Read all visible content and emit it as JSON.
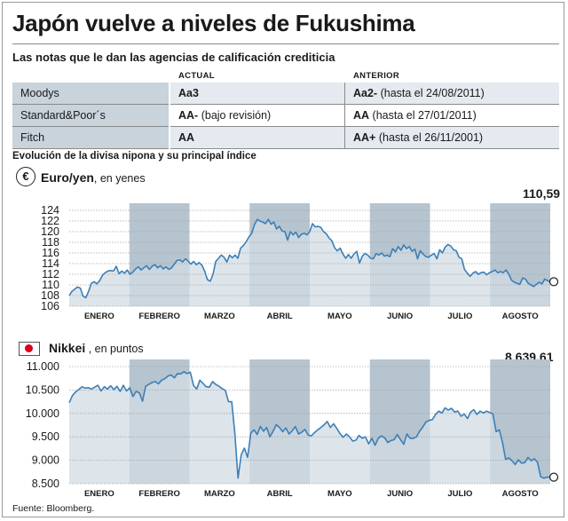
{
  "title": "Japón vuelve a niveles de Fukushima",
  "ratings": {
    "subtitle": "Las notas que le dan las agencias de calificación crediticia",
    "col_actual": "ACTUAL",
    "col_anterior": "ANTERIOR",
    "rows": [
      {
        "agency": "Moodys",
        "actual": "Aa3",
        "actual_note": "",
        "anterior": "Aa2-",
        "anterior_note": "(hasta el 24/08/2011)"
      },
      {
        "agency": "Standard&Poor´s",
        "actual": "AA-",
        "actual_note": "(bajo revisión)",
        "anterior": "AA",
        "anterior_note": "(hasta el 27/01/2011)"
      },
      {
        "agency": "Fitch",
        "actual": "AA",
        "actual_note": "",
        "anterior": "AA+",
        "anterior_note": "(hasta el 26/11/2001)"
      }
    ]
  },
  "section_title": "Evolución de la divisa nipona y su principal índice",
  "currency_icon": "euro-yen-icon",
  "flag_icon": "japan-flag-icon",
  "colors": {
    "line": "#3c7fb7",
    "fill": "#d2dce4",
    "band": "#b6c4cf",
    "grid": "#a8a8a8",
    "table_label_bg": "#c8d3dc",
    "flag_red": "#d9001b"
  },
  "source": "Fuente: Bloomberg.",
  "chart_data": [
    {
      "type": "area",
      "title": "Euro/yen",
      "unit_note": ", en yenes",
      "last_label": "110,59",
      "ylim": [
        106,
        124
      ],
      "yticks": [
        106,
        108,
        110,
        112,
        114,
        116,
        118,
        120,
        122,
        124
      ],
      "ytick_labels": [
        "106",
        "108",
        "110",
        "112",
        "114",
        "116",
        "118",
        "120",
        "122",
        "124"
      ],
      "months": [
        "ENERO",
        "FEBRERO",
        "MARZO",
        "ABRIL",
        "MAYO",
        "JUNIO",
        "JULIO",
        "AGOSTO"
      ],
      "series": [
        {
          "values": [
            108.0,
            108.8,
            109.2,
            109.6,
            109.4,
            107.9,
            107.6,
            108.8,
            110.3,
            110.6,
            110.2,
            110.8,
            111.8,
            112.3,
            112.6,
            112.7,
            112.6,
            113.5,
            112.1,
            112.6,
            112.2,
            112.8,
            112.0,
            112.4,
            113.0,
            113.4,
            112.8,
            113.2,
            113.6,
            112.9,
            113.5,
            113.8,
            113.2,
            113.6,
            113.0,
            113.4,
            112.9,
            113.2,
            113.9,
            114.6,
            114.7,
            114.3,
            114.9,
            114.5,
            113.9,
            114.4,
            113.8,
            114.2,
            113.7,
            112.6,
            111.0,
            110.7,
            112.0,
            114.4,
            115.0,
            115.6,
            115.2,
            114.3,
            115.6,
            115.1,
            115.6,
            115.0,
            116.9,
            117.4,
            118.1,
            119.0,
            119.7,
            121.3,
            122.3,
            122.0,
            121.8,
            121.5,
            122.3,
            121.4,
            121.8,
            120.5,
            121.0,
            120.1,
            120.0,
            118.4,
            120.0,
            119.4,
            119.9,
            118.9,
            119.5,
            119.7,
            119.4,
            120.0,
            121.5,
            120.9,
            121.0,
            120.8,
            120.0,
            119.6,
            118.8,
            118.3,
            117.0,
            116.4,
            116.9,
            115.8,
            115.0,
            115.7,
            115.0,
            115.8,
            116.3,
            114.1,
            115.4,
            115.9,
            115.6,
            115.0,
            114.9,
            115.9,
            115.6,
            116.0,
            115.4,
            115.6,
            115.3,
            116.8,
            116.2,
            117.2,
            116.5,
            117.5,
            116.8,
            117.2,
            116.3,
            116.7,
            114.9,
            116.4,
            115.8,
            115.3,
            115.2,
            115.6,
            115.9,
            114.9,
            116.6,
            116.0,
            117.1,
            117.6,
            117.3,
            116.6,
            116.4,
            115.2,
            114.9,
            112.9,
            112.2,
            111.6,
            112.2,
            112.5,
            112.0,
            112.3,
            112.4,
            111.9,
            112.3,
            112.5,
            112.8,
            112.3,
            112.5,
            112.3,
            112.8,
            112.0,
            110.9,
            110.5,
            110.3,
            110.1,
            111.3,
            111.1,
            110.3,
            110.0,
            109.7,
            110.1,
            110.5,
            110.2,
            111.1,
            110.8,
            110.6
          ]
        }
      ]
    },
    {
      "type": "area",
      "title": "Nikkei",
      "unit_note": " , en puntos",
      "last_label": "8.639,61",
      "ylim": [
        8500,
        11000
      ],
      "yticks": [
        8500,
        9000,
        9500,
        10000,
        10500,
        11000
      ],
      "ytick_labels": [
        "8.500",
        "9.000",
        "9.500",
        "10.000",
        "10.500",
        "11.000"
      ],
      "months": [
        "ENERO",
        "FEBRERO",
        "MARZO",
        "ABRIL",
        "MAYO",
        "JUNIO",
        "JULIO",
        "AGOSTO"
      ],
      "series": [
        {
          "values": [
            10230,
            10380,
            10460,
            10510,
            10570,
            10540,
            10550,
            10520,
            10560,
            10600,
            10480,
            10570,
            10520,
            10590,
            10510,
            10580,
            10470,
            10600,
            10480,
            10550,
            10360,
            10470,
            10440,
            10260,
            10580,
            10620,
            10660,
            10680,
            10630,
            10710,
            10740,
            10800,
            10820,
            10760,
            10850,
            10840,
            10890,
            10850,
            10880,
            10600,
            10520,
            10710,
            10640,
            10570,
            10560,
            10680,
            10620,
            10580,
            10530,
            10490,
            10250,
            10250,
            9580,
            8620,
            9120,
            9260,
            9060,
            9580,
            9650,
            9550,
            9720,
            9620,
            9700,
            9500,
            9620,
            9760,
            9700,
            9610,
            9690,
            9560,
            9630,
            9720,
            9560,
            9600,
            9660,
            9540,
            9520,
            9590,
            9650,
            9700,
            9760,
            9830,
            9700,
            9780,
            9680,
            9570,
            9490,
            9560,
            9500,
            9410,
            9430,
            9530,
            9470,
            9500,
            9350,
            9470,
            9320,
            9470,
            9520,
            9480,
            9380,
            9420,
            9440,
            9550,
            9440,
            9340,
            9560,
            9470,
            9470,
            9500,
            9620,
            9710,
            9820,
            9850,
            9870,
            9980,
            10050,
            10010,
            10120,
            10070,
            10110,
            10030,
            10050,
            9940,
            9990,
            9890,
            10030,
            10080,
            9980,
            10050,
            10010,
            10050,
            10020,
            9990,
            9610,
            9650,
            9380,
            9020,
            9050,
            8990,
            8910,
            9010,
            8940,
            8950,
            9060,
            8990,
            9030,
            8960,
            8650,
            8620,
            8640,
            8639
          ]
        }
      ]
    }
  ]
}
